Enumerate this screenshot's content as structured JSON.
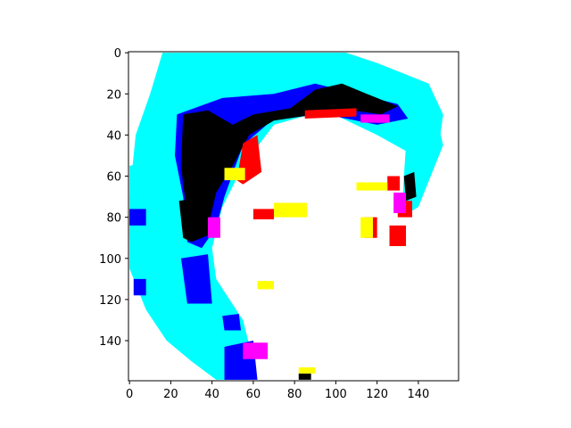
{
  "chart_data": {
    "type": "heatmap",
    "title": "",
    "xlabel": "",
    "ylabel": "",
    "xlim": [
      0,
      159
    ],
    "ylim": [
      159,
      0
    ],
    "xticks": [
      0,
      20,
      40,
      60,
      80,
      100,
      120,
      140
    ],
    "yticks": [
      0,
      20,
      40,
      60,
      80,
      100,
      120,
      140
    ],
    "grid": false,
    "legend": "none",
    "palette": {
      "background": "#ffffff",
      "cyan": "#00ffff",
      "blue": "#0000ff",
      "black": "#000000",
      "red": "#ff0000",
      "magenta": "#ff00ff",
      "yellow": "#ffff00"
    },
    "regions": [
      {
        "name": "cyan-top",
        "color": "cyan",
        "points": [
          [
            16,
            0
          ],
          [
            105,
            0
          ],
          [
            120,
            5
          ],
          [
            145,
            15
          ],
          [
            152,
            30
          ],
          [
            150,
            45
          ],
          [
            138,
            50
          ],
          [
            120,
            40
          ],
          [
            95,
            28
          ],
          [
            70,
            35
          ],
          [
            55,
            55
          ],
          [
            45,
            75
          ],
          [
            40,
            95
          ],
          [
            42,
            110
          ],
          [
            55,
            130
          ],
          [
            60,
            150
          ],
          [
            58,
            159
          ],
          [
            42,
            159
          ],
          [
            30,
            150
          ],
          [
            18,
            140
          ],
          [
            8,
            125
          ],
          [
            0,
            105
          ],
          [
            0,
            70
          ],
          [
            3,
            40
          ],
          [
            10,
            20
          ]
        ]
      },
      {
        "name": "cyan-right",
        "color": "cyan",
        "points": [
          [
            135,
            30
          ],
          [
            148,
            28
          ],
          [
            152,
            45
          ],
          [
            140,
            75
          ],
          [
            132,
            80
          ],
          [
            133,
            60
          ]
        ]
      },
      {
        "name": "cyan-left",
        "color": "cyan",
        "points": [
          [
            0,
            55
          ],
          [
            12,
            52
          ],
          [
            18,
            70
          ],
          [
            12,
            88
          ],
          [
            0,
            90
          ]
        ]
      },
      {
        "name": "blue-arc",
        "color": "blue",
        "points": [
          [
            23,
            30
          ],
          [
            45,
            22
          ],
          [
            70,
            20
          ],
          [
            90,
            15
          ],
          [
            110,
            20
          ],
          [
            130,
            25
          ],
          [
            135,
            32
          ],
          [
            120,
            35
          ],
          [
            95,
            30
          ],
          [
            70,
            32
          ],
          [
            55,
            45
          ],
          [
            46,
            70
          ],
          [
            42,
            85
          ],
          [
            35,
            95
          ],
          [
            28,
            92
          ],
          [
            26,
            70
          ],
          [
            22,
            50
          ]
        ]
      },
      {
        "name": "blue-lower",
        "color": "blue",
        "points": [
          [
            25,
            100
          ],
          [
            38,
            98
          ],
          [
            40,
            122
          ],
          [
            28,
            122
          ]
        ]
      },
      {
        "name": "blue-bottom",
        "color": "blue",
        "points": [
          [
            46,
            143
          ],
          [
            60,
            140
          ],
          [
            62,
            159
          ],
          [
            46,
            159
          ]
        ]
      },
      {
        "name": "blue-small-1",
        "color": "blue",
        "points": [
          [
            45,
            128
          ],
          [
            53,
            127
          ],
          [
            54,
            135
          ],
          [
            46,
            135
          ]
        ]
      },
      {
        "name": "blue-small-2",
        "color": "blue",
        "points": [
          [
            0,
            76
          ],
          [
            8,
            76
          ],
          [
            8,
            84
          ],
          [
            0,
            84
          ]
        ]
      },
      {
        "name": "blue-small-3",
        "color": "blue",
        "points": [
          [
            2,
            110
          ],
          [
            8,
            110
          ],
          [
            8,
            118
          ],
          [
            2,
            118
          ]
        ]
      },
      {
        "name": "black-arc",
        "color": "black",
        "points": [
          [
            26,
            30
          ],
          [
            38,
            28
          ],
          [
            50,
            35
          ],
          [
            60,
            30
          ],
          [
            78,
            27
          ],
          [
            90,
            18
          ],
          [
            103,
            15
          ],
          [
            115,
            20
          ],
          [
            130,
            26
          ],
          [
            122,
            30
          ],
          [
            108,
            28
          ],
          [
            90,
            30
          ],
          [
            70,
            33
          ],
          [
            58,
            40
          ],
          [
            50,
            55
          ],
          [
            42,
            68
          ],
          [
            38,
            85
          ],
          [
            32,
            88
          ],
          [
            28,
            80
          ],
          [
            25,
            55
          ]
        ]
      },
      {
        "name": "black-lower",
        "color": "black",
        "points": [
          [
            24,
            72
          ],
          [
            38,
            70
          ],
          [
            40,
            88
          ],
          [
            30,
            92
          ],
          [
            26,
            90
          ]
        ]
      },
      {
        "name": "black-right",
        "color": "black",
        "points": [
          [
            133,
            60
          ],
          [
            138,
            58
          ],
          [
            139,
            70
          ],
          [
            134,
            72
          ]
        ]
      },
      {
        "name": "black-bottom",
        "color": "black",
        "points": [
          [
            82,
            156
          ],
          [
            88,
            156
          ],
          [
            88,
            159
          ],
          [
            82,
            159
          ]
        ]
      },
      {
        "name": "red-arc",
        "color": "red",
        "points": [
          [
            55,
            44
          ],
          [
            62,
            40
          ],
          [
            64,
            58
          ],
          [
            55,
            64
          ],
          [
            52,
            62
          ]
        ]
      },
      {
        "name": "red-top",
        "color": "red",
        "points": [
          [
            85,
            28
          ],
          [
            110,
            27
          ],
          [
            110,
            31
          ],
          [
            85,
            32
          ]
        ]
      },
      {
        "name": "red-1",
        "color": "red",
        "points": [
          [
            60,
            76
          ],
          [
            70,
            76
          ],
          [
            70,
            81
          ],
          [
            60,
            81
          ]
        ]
      },
      {
        "name": "red-2",
        "color": "red",
        "points": [
          [
            125,
            60
          ],
          [
            131,
            60
          ],
          [
            131,
            67
          ],
          [
            125,
            67
          ]
        ]
      },
      {
        "name": "red-3",
        "color": "red",
        "points": [
          [
            114,
            80
          ],
          [
            120,
            80
          ],
          [
            120,
            90
          ],
          [
            114,
            90
          ]
        ]
      },
      {
        "name": "red-4",
        "color": "red",
        "points": [
          [
            126,
            84
          ],
          [
            134,
            84
          ],
          [
            134,
            94
          ],
          [
            126,
            94
          ]
        ]
      },
      {
        "name": "red-5",
        "color": "red",
        "points": [
          [
            130,
            72
          ],
          [
            137,
            72
          ],
          [
            137,
            80
          ],
          [
            130,
            80
          ]
        ]
      },
      {
        "name": "red-6",
        "color": "red",
        "points": [
          [
            58,
            141
          ],
          [
            66,
            141
          ],
          [
            66,
            147
          ],
          [
            58,
            147
          ]
        ]
      },
      {
        "name": "yellow-1",
        "color": "yellow",
        "points": [
          [
            70,
            73
          ],
          [
            86,
            73
          ],
          [
            86,
            80
          ],
          [
            70,
            80
          ]
        ]
      },
      {
        "name": "yellow-2",
        "color": "yellow",
        "points": [
          [
            62,
            111
          ],
          [
            70,
            111
          ],
          [
            70,
            115
          ],
          [
            62,
            115
          ]
        ]
      },
      {
        "name": "yellow-3",
        "color": "yellow",
        "points": [
          [
            112,
            80
          ],
          [
            118,
            80
          ],
          [
            118,
            90
          ],
          [
            112,
            90
          ]
        ]
      },
      {
        "name": "yellow-4",
        "color": "yellow",
        "points": [
          [
            110,
            63
          ],
          [
            125,
            63
          ],
          [
            125,
            67
          ],
          [
            110,
            67
          ]
        ]
      },
      {
        "name": "yellow-5",
        "color": "yellow",
        "points": [
          [
            82,
            153
          ],
          [
            90,
            153
          ],
          [
            90,
            156
          ],
          [
            82,
            156
          ]
        ]
      },
      {
        "name": "yellow-6",
        "color": "yellow",
        "points": [
          [
            46,
            56
          ],
          [
            56,
            56
          ],
          [
            56,
            62
          ],
          [
            46,
            62
          ]
        ]
      },
      {
        "name": "magenta-1",
        "color": "magenta",
        "points": [
          [
            38,
            80
          ],
          [
            44,
            80
          ],
          [
            44,
            90
          ],
          [
            38,
            90
          ]
        ]
      },
      {
        "name": "magenta-2",
        "color": "magenta",
        "points": [
          [
            55,
            141
          ],
          [
            67,
            141
          ],
          [
            67,
            149
          ],
          [
            55,
            149
          ]
        ]
      },
      {
        "name": "magenta-3",
        "color": "magenta",
        "points": [
          [
            128,
            68
          ],
          [
            134,
            68
          ],
          [
            134,
            78
          ],
          [
            128,
            78
          ]
        ]
      },
      {
        "name": "magenta-4",
        "color": "magenta",
        "points": [
          [
            112,
            30
          ],
          [
            126,
            30
          ],
          [
            126,
            34
          ],
          [
            112,
            34
          ]
        ]
      }
    ]
  }
}
